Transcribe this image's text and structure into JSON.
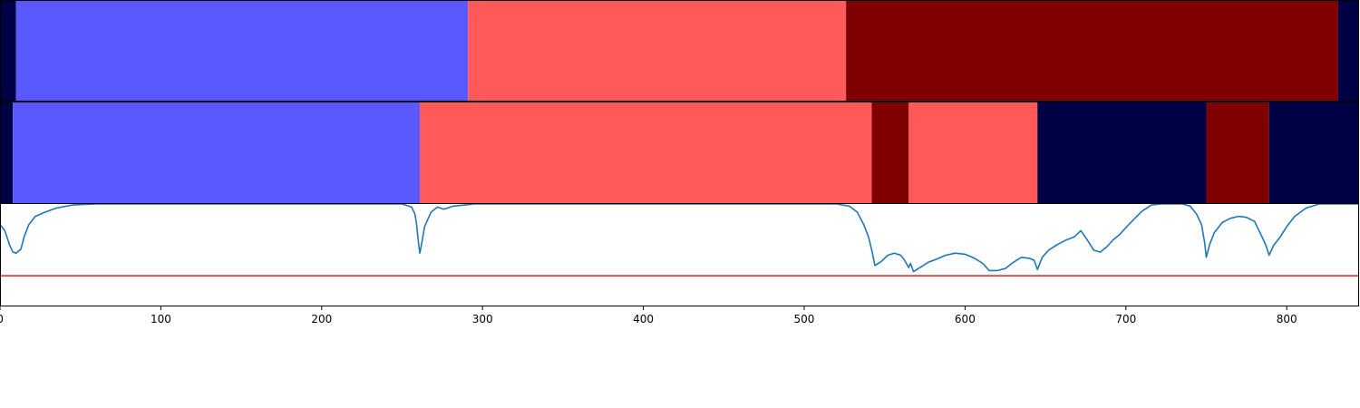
{
  "colors": {
    "class_0": "#000044",
    "class_1": "#5959ff",
    "class_2": "#ff5959",
    "class_3": "#7f0000",
    "curve": "#1f77b4",
    "threshold_line": "#e02020",
    "axes": "#000000"
  },
  "chart_data": [
    {
      "type": "heatmap",
      "description_row": "segmentation-row-1",
      "xlim": [
        0,
        845
      ],
      "segments": [
        {
          "start": 0,
          "end": 10,
          "class": 0
        },
        {
          "start": 10,
          "end": 291,
          "class": 1
        },
        {
          "start": 291,
          "end": 526,
          "class": 2
        },
        {
          "start": 526,
          "end": 832,
          "class": 3
        },
        {
          "start": 832,
          "end": 845,
          "class": 0
        }
      ]
    },
    {
      "type": "heatmap",
      "description_row": "segmentation-row-2",
      "xlim": [
        0,
        845
      ],
      "segments": [
        {
          "start": 0,
          "end": 8,
          "class": 0
        },
        {
          "start": 8,
          "end": 261,
          "class": 1
        },
        {
          "start": 261,
          "end": 542,
          "class": 2
        },
        {
          "start": 542,
          "end": 565,
          "class": 3
        },
        {
          "start": 565,
          "end": 645,
          "class": 2
        },
        {
          "start": 645,
          "end": 750,
          "class": 0
        },
        {
          "start": 750,
          "end": 789,
          "class": 3
        },
        {
          "start": 789,
          "end": 845,
          "class": 0
        }
      ]
    },
    {
      "type": "line",
      "xlim": [
        0,
        845
      ],
      "ylim": [
        0,
        1
      ],
      "xticks": [
        0,
        100,
        200,
        300,
        400,
        500,
        600,
        700,
        800
      ],
      "threshold": 0.3,
      "series": [
        {
          "points": [
            [
              0,
              0.8
            ],
            [
              3,
              0.74
            ],
            [
              6,
              0.6
            ],
            [
              8,
              0.53
            ],
            [
              10,
              0.52
            ],
            [
              13,
              0.56
            ],
            [
              15,
              0.68
            ],
            [
              18,
              0.8
            ],
            [
              22,
              0.88
            ],
            [
              28,
              0.92
            ],
            [
              35,
              0.96
            ],
            [
              45,
              0.99
            ],
            [
              60,
              1.0
            ],
            [
              250,
              1.0
            ],
            [
              256,
              0.97
            ],
            [
              258,
              0.9
            ],
            [
              259,
              0.8
            ],
            [
              260,
              0.65
            ],
            [
              261,
              0.52
            ],
            [
              262,
              0.6
            ],
            [
              264,
              0.78
            ],
            [
              268,
              0.92
            ],
            [
              272,
              0.97
            ],
            [
              276,
              0.95
            ],
            [
              282,
              0.98
            ],
            [
              295,
              1.0
            ],
            [
              520,
              1.0
            ],
            [
              528,
              0.98
            ],
            [
              533,
              0.92
            ],
            [
              537,
              0.8
            ],
            [
              540,
              0.68
            ],
            [
              542,
              0.55
            ],
            [
              544,
              0.4
            ],
            [
              548,
              0.44
            ],
            [
              552,
              0.5
            ],
            [
              556,
              0.52
            ],
            [
              560,
              0.5
            ],
            [
              562,
              0.46
            ],
            [
              565,
              0.38
            ],
            [
              566,
              0.42
            ],
            [
              568,
              0.34
            ],
            [
              572,
              0.38
            ],
            [
              577,
              0.43
            ],
            [
              582,
              0.46
            ],
            [
              588,
              0.5
            ],
            [
              594,
              0.52
            ],
            [
              600,
              0.51
            ],
            [
              606,
              0.47
            ],
            [
              611,
              0.42
            ],
            [
              615,
              0.35
            ],
            [
              620,
              0.35
            ],
            [
              625,
              0.37
            ],
            [
              630,
              0.43
            ],
            [
              635,
              0.48
            ],
            [
              640,
              0.47
            ],
            [
              643,
              0.45
            ],
            [
              645,
              0.36
            ],
            [
              648,
              0.48
            ],
            [
              652,
              0.55
            ],
            [
              657,
              0.6
            ],
            [
              663,
              0.65
            ],
            [
              668,
              0.68
            ],
            [
              672,
              0.74
            ],
            [
              676,
              0.65
            ],
            [
              680,
              0.55
            ],
            [
              684,
              0.53
            ],
            [
              688,
              0.58
            ],
            [
              692,
              0.65
            ],
            [
              696,
              0.7
            ],
            [
              700,
              0.77
            ],
            [
              705,
              0.85
            ],
            [
              710,
              0.93
            ],
            [
              716,
              0.99
            ],
            [
              722,
              1.0
            ],
            [
              735,
              1.0
            ],
            [
              740,
              0.98
            ],
            [
              744,
              0.9
            ],
            [
              747,
              0.8
            ],
            [
              749,
              0.62
            ],
            [
              750,
              0.48
            ],
            [
              752,
              0.6
            ],
            [
              755,
              0.72
            ],
            [
              760,
              0.82
            ],
            [
              765,
              0.86
            ],
            [
              770,
              0.88
            ],
            [
              775,
              0.87
            ],
            [
              780,
              0.83
            ],
            [
              784,
              0.7
            ],
            [
              787,
              0.6
            ],
            [
              789,
              0.5
            ],
            [
              792,
              0.6
            ],
            [
              796,
              0.68
            ],
            [
              800,
              0.78
            ],
            [
              805,
              0.88
            ],
            [
              812,
              0.96
            ],
            [
              820,
              1.0
            ],
            [
              845,
              1.0
            ]
          ]
        }
      ]
    }
  ]
}
